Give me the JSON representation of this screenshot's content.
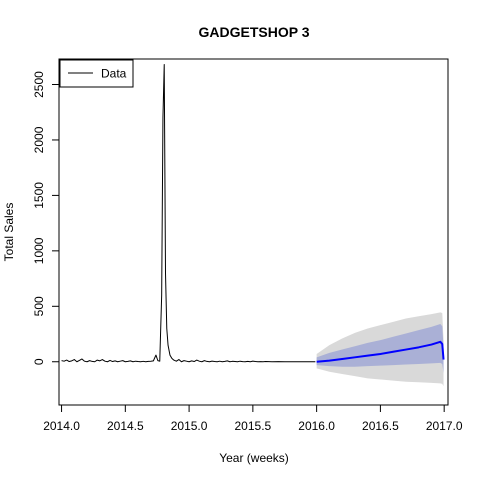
{
  "chart_data": {
    "type": "line",
    "title": "GADGETSHOP 3",
    "xlabel": "Year (weeks)",
    "ylabel": "Total Sales",
    "xlim": [
      2013.98,
      2017.03
    ],
    "ylim": [
      -390,
      2730
    ],
    "x_ticks": [
      2014.0,
      2014.5,
      2015.0,
      2015.5,
      2016.0,
      2016.5,
      2017.0
    ],
    "x_tick_labels": [
      "2014.0",
      "2014.5",
      "2015.0",
      "2015.5",
      "2016.0",
      "2016.5",
      "2017.0"
    ],
    "y_ticks": [
      0,
      500,
      1000,
      1500,
      2000,
      2500
    ],
    "y_tick_labels": [
      "0",
      "500",
      "1000",
      "1500",
      "2000",
      "2500"
    ],
    "grid": false,
    "legend": {
      "position": "top-left",
      "entries": [
        {
          "label": "Data",
          "color": "#000000"
        }
      ]
    },
    "series": [
      {
        "name": "Data",
        "color": "#000000",
        "x": [
          2014.0,
          2014.02,
          2014.04,
          2014.06,
          2014.08,
          2014.1,
          2014.12,
          2014.14,
          2014.16,
          2014.18,
          2014.2,
          2014.22,
          2014.24,
          2014.26,
          2014.28,
          2014.3,
          2014.32,
          2014.34,
          2014.36,
          2014.38,
          2014.4,
          2014.42,
          2014.44,
          2014.46,
          2014.48,
          2014.5,
          2014.52,
          2014.54,
          2014.56,
          2014.58,
          2014.6,
          2014.62,
          2014.64,
          2014.66,
          2014.68,
          2014.7,
          2014.72,
          2014.74,
          2014.755,
          2014.77,
          2014.785,
          2014.795,
          2014.805,
          2014.815,
          2014.825,
          2014.835,
          2014.85,
          2014.865,
          2014.88,
          2014.9,
          2014.92,
          2014.94,
          2014.96,
          2014.98,
          2015.0,
          2015.02,
          2015.04,
          2015.06,
          2015.08,
          2015.1,
          2015.12,
          2015.14,
          2015.16,
          2015.18,
          2015.2,
          2015.22,
          2015.24,
          2015.26,
          2015.28,
          2015.3,
          2015.32,
          2015.34,
          2015.36,
          2015.38,
          2015.4,
          2015.42,
          2015.44,
          2015.46,
          2015.48,
          2015.5,
          2015.52,
          2015.54,
          2015.56,
          2015.58,
          2015.6,
          2015.65,
          2015.7,
          2015.75,
          2015.8,
          2015.85,
          2015.9,
          2015.95,
          2015.99
        ],
        "y": [
          10,
          5,
          15,
          2,
          8,
          20,
          0,
          12,
          25,
          5,
          0,
          10,
          3,
          0,
          15,
          8,
          20,
          5,
          0,
          12,
          2,
          8,
          0,
          5,
          10,
          0,
          3,
          8,
          0,
          5,
          2,
          0,
          4,
          0,
          3,
          5,
          8,
          60,
          10,
          5,
          600,
          2200,
          2680,
          800,
          300,
          150,
          60,
          30,
          15,
          5,
          20,
          0,
          10,
          5,
          0,
          8,
          2,
          15,
          5,
          0,
          10,
          3,
          0,
          6,
          2,
          0,
          5,
          0,
          3,
          8,
          0,
          4,
          2,
          0,
          5,
          1,
          0,
          3,
          0,
          6,
          2,
          0,
          1,
          0,
          2,
          0,
          1,
          0,
          0,
          0,
          0,
          0,
          0
        ]
      },
      {
        "name": "",
        "color": "#0000ff",
        "x": [
          2016.0,
          2016.1,
          2016.2,
          2016.3,
          2016.4,
          2016.5,
          2016.6,
          2016.7,
          2016.8,
          2016.9,
          2016.97,
          2016.985,
          2016.995
        ],
        "y": [
          0,
          10,
          25,
          40,
          55,
          70,
          90,
          110,
          130,
          155,
          180,
          160,
          20
        ]
      }
    ],
    "bands": [
      {
        "name": "",
        "color": "#d9d9d9",
        "x": [
          2016.0,
          2016.1,
          2016.2,
          2016.3,
          2016.4,
          2016.5,
          2016.6,
          2016.7,
          2016.8,
          2016.9,
          2016.97,
          2016.985,
          2016.995
        ],
        "lower": [
          -60,
          -90,
          -110,
          -130,
          -150,
          -160,
          -170,
          -180,
          -185,
          -190,
          -195,
          -200,
          -220
        ],
        "upper": [
          70,
          150,
          210,
          260,
          300,
          330,
          360,
          390,
          410,
          430,
          445,
          440,
          200
        ]
      },
      {
        "name": "",
        "color": "#aab0d6",
        "x": [
          2016.0,
          2016.1,
          2016.2,
          2016.3,
          2016.4,
          2016.5,
          2016.6,
          2016.7,
          2016.8,
          2016.9,
          2016.97,
          2016.985,
          2016.995
        ],
        "lower": [
          -30,
          -40,
          -45,
          -45,
          -40,
          -35,
          -30,
          -25,
          -20,
          -15,
          -10,
          -20,
          -100
        ],
        "upper": [
          40,
          80,
          110,
          140,
          170,
          195,
          225,
          255,
          285,
          315,
          340,
          320,
          130
        ]
      }
    ]
  }
}
